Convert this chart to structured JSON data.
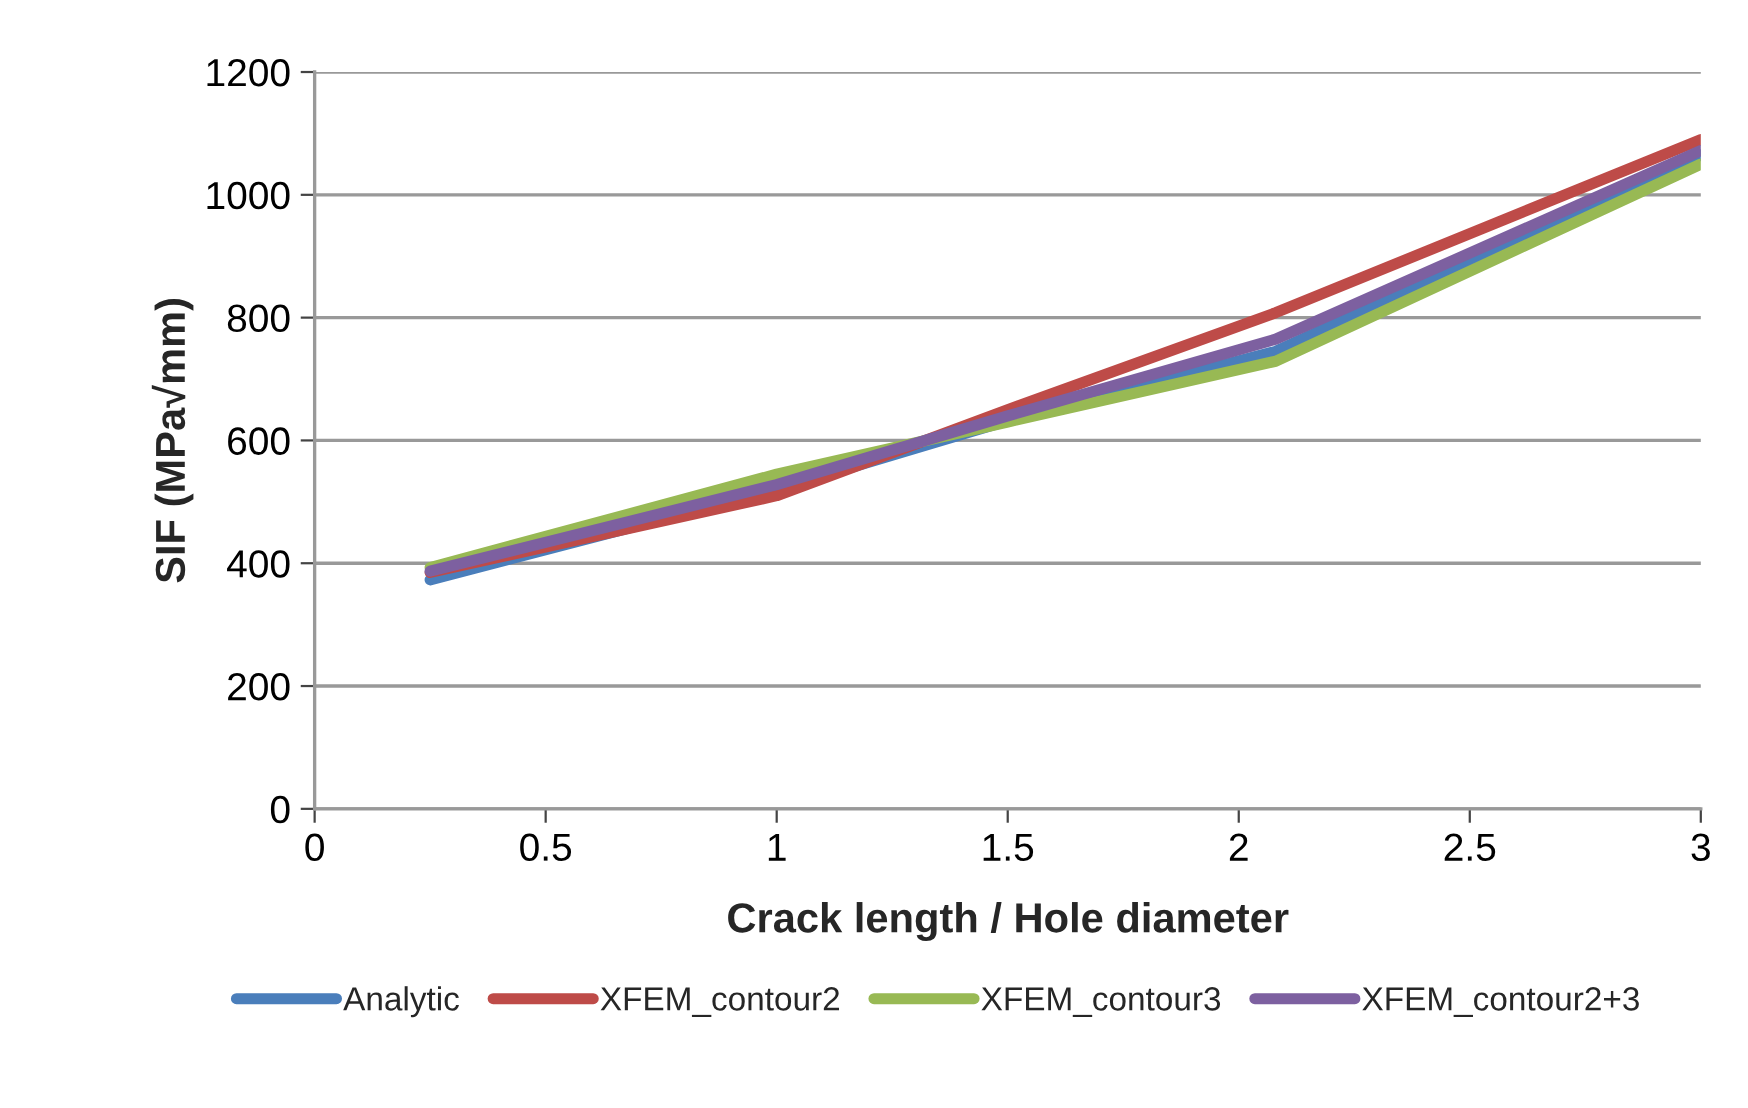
{
  "chart_data": {
    "type": "line",
    "xlabel": "Crack length / Hole diameter",
    "ylabel": "SIF (MPa√mm)",
    "x": [
      0.25,
      1,
      1.5,
      2.08,
      3
    ],
    "series": [
      {
        "name": "Analytic",
        "color": "#4a7ebb",
        "values": [
          373,
          520,
          632,
          745,
          1065
        ]
      },
      {
        "name": "XFEM_contour2",
        "color": "#be4b48",
        "values": [
          385,
          510,
          650,
          808,
          1090
        ]
      },
      {
        "name": "XFEM_contour3",
        "color": "#98b954",
        "values": [
          393,
          545,
          630,
          729,
          1050
        ]
      },
      {
        "name": "XFEM_contour2+3",
        "color": "#7d60a0",
        "values": [
          387,
          528,
          640,
          765,
          1072
        ]
      }
    ],
    "xlim": [
      0,
      3
    ],
    "ylim": [
      0,
      1200
    ],
    "xticks": [
      0,
      0.5,
      1,
      1.5,
      2,
      2.5,
      3
    ],
    "yticks": [
      0,
      200,
      400,
      600,
      800,
      1000,
      1200
    ],
    "grid": "y",
    "legend": "bottom",
    "marker": "none",
    "line_style": "solid"
  }
}
